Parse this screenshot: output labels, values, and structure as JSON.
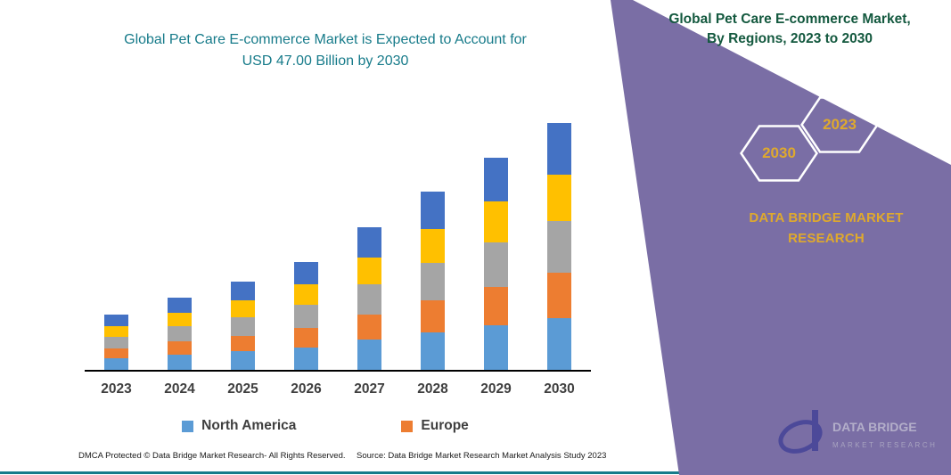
{
  "theme": {
    "purple": "#7A6EA5",
    "teal": "#177B8A",
    "green": "#14593F",
    "gold": "#DFA92D",
    "axis-text": "#3F3F3F",
    "footer-text": "#1A1A1A"
  },
  "chart": {
    "title_line1": "Global Pet Care E-commerce Market is Expected to Account for",
    "title_line2": "USD 47.00 Billion by 2030"
  },
  "chart_data": {
    "type": "bar",
    "stacked": true,
    "title": "Global Pet Care E-commerce Market is Expected to Account for USD 47.00 Billion by 2030",
    "unit": "USD Billion",
    "categories": [
      "2023",
      "2024",
      "2025",
      "2026",
      "2027",
      "2028",
      "2029",
      "2030"
    ],
    "series": [
      {
        "name": "North America",
        "color": "#5B9BD5",
        "values": [
          2.2,
          2.9,
          3.5,
          4.3,
          5.7,
          7.1,
          8.5,
          9.9
        ]
      },
      {
        "name": "Europe",
        "color": "#ED7D31",
        "values": [
          1.9,
          2.5,
          3.0,
          3.7,
          4.9,
          6.1,
          7.3,
          8.5
        ]
      },
      {
        "name": "unlabeled-series-gray",
        "color": "#A5A5A5",
        "values": [
          2.2,
          2.9,
          3.5,
          4.3,
          5.7,
          7.1,
          8.5,
          9.9
        ]
      },
      {
        "name": "unlabeled-series-yellow",
        "color": "#FFC000",
        "values": [
          2.0,
          2.6,
          3.2,
          3.9,
          5.1,
          6.5,
          7.7,
          8.9
        ]
      },
      {
        "name": "unlabeled-series-darkblue",
        "color": "#4472C4",
        "values": [
          2.2,
          2.9,
          3.5,
          4.3,
          5.7,
          7.1,
          8.3,
          9.8
        ]
      }
    ],
    "totals_estimated": [
      10.5,
      13.8,
      16.7,
      20.5,
      27.1,
      33.9,
      40.3,
      47.0
    ],
    "legend_entries": [
      {
        "label": "North America",
        "color": "#5B9BD5"
      },
      {
        "label": "Europe",
        "color": "#ED7D31"
      }
    ],
    "xlabel": "",
    "ylabel": "",
    "ylim": [
      0,
      50
    ],
    "y_axis_shown": false,
    "gridlines": false,
    "legend_position": "bottom"
  },
  "panel": {
    "title_line1": "Global Pet Care E-commerce Market,",
    "title_line2": "By Regions, 2023 to 2030",
    "badges": [
      "2030",
      "2023"
    ],
    "brand_line1": "DATA BRIDGE MARKET",
    "brand_line2": "RESEARCH"
  },
  "watermark": {
    "line1": "DATA BRIDGE",
    "line2": "MARKET RESEARCH"
  },
  "footer": {
    "dmca": "DMCA Protected © Data Bridge Market Research-  All Rights Reserved.",
    "source": "Source: Data Bridge Market Research  Market Analysis Study 2023"
  }
}
